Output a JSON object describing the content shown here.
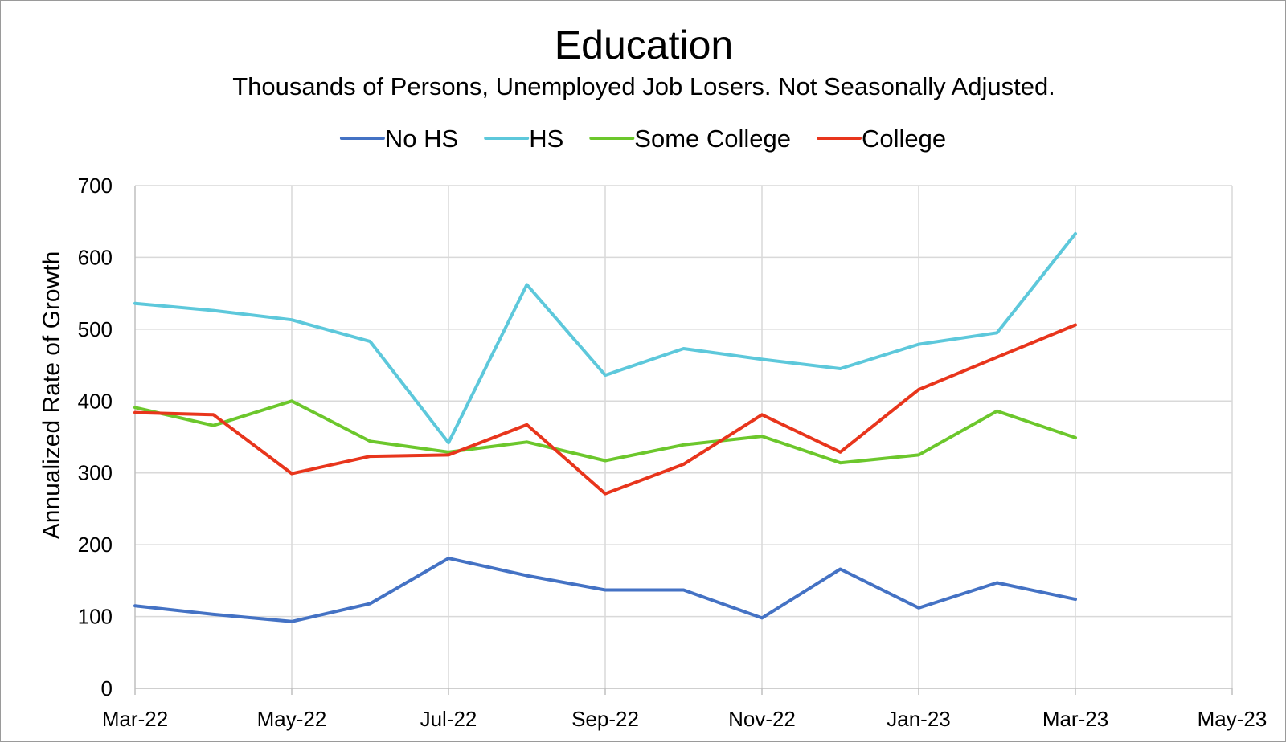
{
  "chart_data": {
    "type": "line",
    "title": "Education",
    "subtitle": "Thousands of Persons, Unemployed Job Losers. Not Seasonally Adjusted.",
    "ylabel": "Annualized Rate of Growth",
    "xlabel": "",
    "ylim": [
      0,
      700
    ],
    "yticks": [
      0,
      100,
      200,
      300,
      400,
      500,
      600,
      700
    ],
    "x_range": [
      "2022-03",
      "2023-05"
    ],
    "xtick_labels": [
      "Mar-22",
      "May-22",
      "Jul-22",
      "Sep-22",
      "Nov-22",
      "Jan-23",
      "Mar-23",
      "May-23"
    ],
    "x": [
      "2022-03",
      "2022-04",
      "2022-05",
      "2022-06",
      "2022-07",
      "2022-08",
      "2022-09",
      "2022-10",
      "2022-11",
      "2022-12",
      "2023-01",
      "2023-02",
      "2023-03"
    ],
    "grid": true,
    "legend_position": "top",
    "series": [
      {
        "name": "No HS",
        "color": "#4472c4",
        "values": [
          115,
          103,
          93,
          118,
          181,
          157,
          137,
          137,
          98,
          166,
          112,
          147,
          124
        ]
      },
      {
        "name": "HS",
        "color": "#5dc8db",
        "values": [
          536,
          526,
          513,
          483,
          342,
          562,
          436,
          473,
          458,
          445,
          479,
          495,
          633
        ]
      },
      {
        "name": "Some College",
        "color": "#6cc72c",
        "values": [
          391,
          366,
          400,
          344,
          329,
          343,
          317,
          339,
          351,
          314,
          325,
          386,
          349
        ]
      },
      {
        "name": "College",
        "color": "#e8351c",
        "values": [
          384,
          381,
          299,
          323,
          325,
          367,
          271,
          312,
          381,
          329,
          416,
          461,
          506
        ]
      }
    ]
  }
}
